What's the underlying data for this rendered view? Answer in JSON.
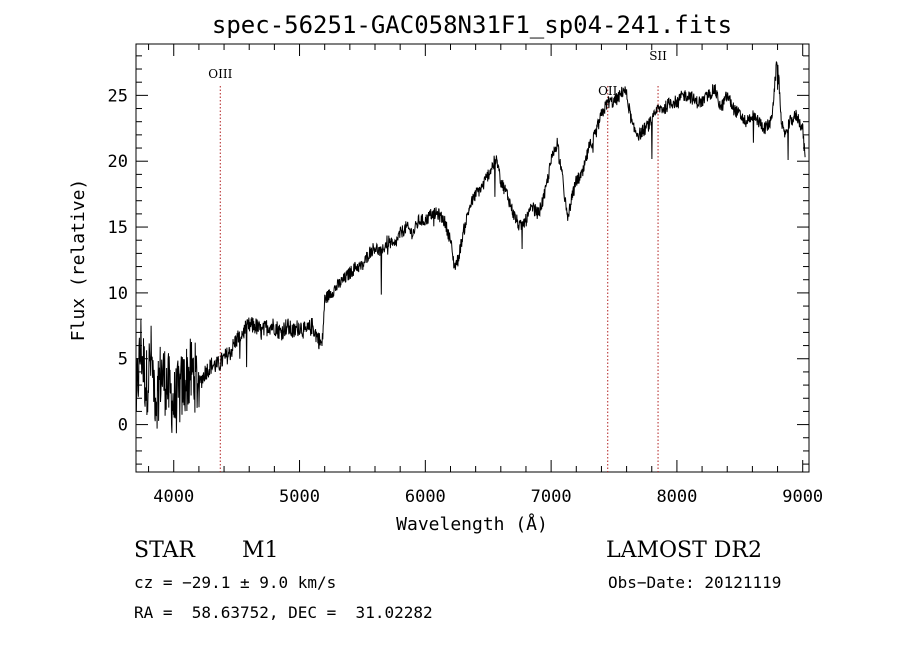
{
  "chart_data": {
    "type": "line",
    "title": "spec-56251-GAC058N31F1_sp04-241.fits",
    "xlabel": "Wavelength (Å)",
    "ylabel": "Flux (relative)",
    "xlim": [
      3700,
      9050
    ],
    "ylim": [
      -3.6,
      28.9
    ],
    "xticks": [
      4000,
      5000,
      6000,
      7000,
      8000,
      9000
    ],
    "yticks": [
      0,
      5,
      10,
      15,
      20,
      25
    ],
    "grid": false,
    "line_color": "#000000",
    "marker_color": "#b22222",
    "series": [
      {
        "x": [
          3700,
          3740,
          3780,
          3820,
          3860,
          3900,
          3950,
          4000,
          4050,
          4100,
          4150,
          4200,
          4250,
          4300,
          4350,
          4400,
          4450,
          4500,
          4550,
          4600,
          4650,
          4700,
          4750,
          4800,
          4850,
          4900,
          4950,
          5000,
          5050,
          5100,
          5150,
          5180,
          5200,
          5250,
          5300,
          5350,
          5400,
          5450,
          5500,
          5550,
          5600,
          5650,
          5700,
          5750,
          5800,
          5850,
          5900,
          5950,
          6000,
          6050,
          6100,
          6150,
          6200,
          6230,
          6260,
          6300,
          6350,
          6400,
          6450,
          6500,
          6550,
          6570,
          6600,
          6650,
          6700,
          6750,
          6800,
          6850,
          6900,
          6950,
          7000,
          7050,
          7100,
          7130,
          7160,
          7200,
          7250,
          7300,
          7350,
          7400,
          7450,
          7500,
          7550,
          7580,
          7600,
          7650,
          7700,
          7750,
          7800,
          7850,
          7900,
          7950,
          8000,
          8050,
          8100,
          8150,
          8200,
          8250,
          8300,
          8350,
          8400,
          8450,
          8500,
          8550,
          8600,
          8650,
          8700,
          8750,
          8800,
          8830,
          8850,
          8900,
          8950,
          9000,
          9020
        ],
        "y": [
          2.0,
          6.0,
          3.0,
          5.0,
          2.0,
          4.0,
          3.0,
          1.5,
          2.5,
          3.5,
          4.0,
          3.0,
          4.0,
          4.5,
          4.5,
          5.0,
          5.5,
          6.5,
          7.0,
          7.5,
          7.5,
          7.0,
          7.5,
          7.5,
          7.0,
          7.5,
          7.0,
          7.5,
          7.0,
          7.5,
          6.5,
          6.0,
          9.5,
          10.0,
          10.5,
          11.0,
          11.5,
          12.0,
          12.0,
          13.0,
          13.5,
          13.0,
          14.0,
          13.5,
          14.5,
          15.0,
          14.5,
          15.5,
          15.5,
          16.0,
          16.0,
          15.5,
          14.0,
          12.0,
          12.5,
          14.5,
          16.5,
          17.5,
          18.0,
          19.0,
          20.0,
          20.0,
          18.5,
          17.5,
          16.0,
          15.0,
          15.5,
          16.5,
          16.0,
          17.5,
          20.0,
          21.5,
          18.0,
          15.5,
          17.0,
          18.5,
          19.0,
          21.0,
          22.0,
          23.5,
          24.5,
          24.5,
          25.0,
          25.5,
          25.0,
          22.5,
          22.0,
          22.5,
          23.0,
          24.0,
          24.0,
          24.5,
          24.5,
          25.0,
          25.0,
          24.5,
          24.5,
          25.0,
          25.5,
          24.0,
          25.0,
          24.0,
          23.5,
          23.0,
          23.5,
          23.0,
          22.5,
          23.0,
          28.0,
          23.0,
          22.0,
          23.0,
          23.5,
          22.5,
          20.0
        ]
      }
    ],
    "markers": [
      {
        "label": "OIII",
        "x": 4370
      },
      {
        "label": "OII",
        "x": 7450
      },
      {
        "label": "SII",
        "x": 7850
      }
    ]
  },
  "info": {
    "class": "STAR",
    "subclass": "M1",
    "survey": "LAMOST DR2",
    "cz": "cz = −29.1 ± 9.0 km/s",
    "obs_date": "Obs−Date: 20121119",
    "coords": "RA =  58.63752, DEC =  31.02282"
  }
}
